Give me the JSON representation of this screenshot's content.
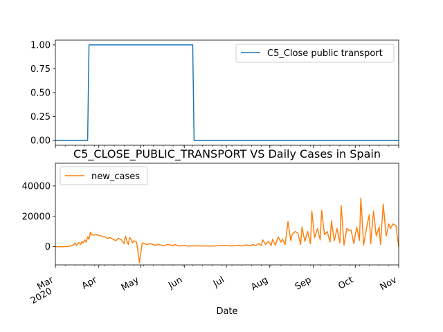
{
  "chart_data": [
    {
      "type": "line",
      "title": "",
      "xlabel": "",
      "ylabel": "",
      "ylim": [
        -0.05,
        1.05
      ],
      "y_ticks": [
        "0.00",
        "0.25",
        "0.50",
        "0.75",
        "1.00"
      ],
      "y_tick_values": [
        0,
        0.25,
        0.5,
        0.75,
        1.0
      ],
      "legend_position": "top-right",
      "series": [
        {
          "name": "C5_Close public transport",
          "color": "#1f77b4",
          "x": [
            "2020-03-01",
            "2020-03-24",
            "2020-03-25",
            "2020-06-07",
            "2020-06-08",
            "2020-11-01"
          ],
          "values": [
            0,
            0,
            1,
            1,
            0,
            0
          ]
        }
      ]
    },
    {
      "type": "line",
      "title": "C5_CLOSE_PUBLIC_TRANSPORT VS Daily Cases in Spain",
      "xlabel": "Date",
      "ylabel": "",
      "ylim": [
        -12000,
        55000
      ],
      "y_ticks": [
        "0",
        "20000",
        "40000"
      ],
      "y_tick_values": [
        0,
        20000,
        40000
      ],
      "legend_position": "top-left",
      "x_ticks": [
        {
          "label": "Mar",
          "sub": "2020",
          "date": "2020-03-01"
        },
        {
          "label": "Apr",
          "sub": "",
          "date": "2020-04-01"
        },
        {
          "label": "May",
          "sub": "",
          "date": "2020-05-01"
        },
        {
          "label": "Jun",
          "sub": "",
          "date": "2020-06-01"
        },
        {
          "label": "Jul",
          "sub": "",
          "date": "2020-07-01"
        },
        {
          "label": "Aug",
          "sub": "",
          "date": "2020-08-01"
        },
        {
          "label": "Sep",
          "sub": "",
          "date": "2020-09-01"
        },
        {
          "label": "Oct",
          "sub": "",
          "date": "2020-10-01"
        },
        {
          "label": "Nov",
          "sub": "",
          "date": "2020-11-01"
        }
      ],
      "x_range": [
        "2020-03-01",
        "2020-11-01"
      ],
      "series": [
        {
          "name": "new_cases",
          "color": "#ff7f0e",
          "x": [
            "2020-03-01",
            "2020-03-05",
            "2020-03-10",
            "2020-03-12",
            "2020-03-14",
            "2020-03-15",
            "2020-03-16",
            "2020-03-17",
            "2020-03-18",
            "2020-03-19",
            "2020-03-20",
            "2020-03-21",
            "2020-03-22",
            "2020-03-23",
            "2020-03-24",
            "2020-03-25",
            "2020-03-26",
            "2020-03-27",
            "2020-03-28",
            "2020-03-30",
            "2020-04-01",
            "2020-04-03",
            "2020-04-05",
            "2020-04-07",
            "2020-04-09",
            "2020-04-11",
            "2020-04-13",
            "2020-04-15",
            "2020-04-17",
            "2020-04-19",
            "2020-04-20",
            "2020-04-21",
            "2020-04-22",
            "2020-04-23",
            "2020-04-24",
            "2020-04-25",
            "2020-04-26",
            "2020-04-28",
            "2020-04-30",
            "2020-05-02",
            "2020-05-05",
            "2020-05-08",
            "2020-05-11",
            "2020-05-14",
            "2020-05-17",
            "2020-05-20",
            "2020-05-23",
            "2020-05-24",
            "2020-05-25",
            "2020-05-28",
            "2020-06-01",
            "2020-06-03",
            "2020-06-06",
            "2020-06-10",
            "2020-06-15",
            "2020-06-20",
            "2020-06-25",
            "2020-06-30",
            "2020-07-05",
            "2020-07-10",
            "2020-07-12",
            "2020-07-15",
            "2020-07-18",
            "2020-07-20",
            "2020-07-22",
            "2020-07-24",
            "2020-07-26",
            "2020-07-27",
            "2020-07-29",
            "2020-07-31",
            "2020-08-02",
            "2020-08-03",
            "2020-08-05",
            "2020-08-07",
            "2020-08-09",
            "2020-08-10",
            "2020-08-12",
            "2020-08-14",
            "2020-08-16",
            "2020-08-17",
            "2020-08-19",
            "2020-08-21",
            "2020-08-23",
            "2020-08-24",
            "2020-08-26",
            "2020-08-28",
            "2020-08-30",
            "2020-08-31",
            "2020-09-02",
            "2020-09-04",
            "2020-09-06",
            "2020-09-07",
            "2020-09-09",
            "2020-09-11",
            "2020-09-13",
            "2020-09-14",
            "2020-09-16",
            "2020-09-18",
            "2020-09-20",
            "2020-09-21",
            "2020-09-23",
            "2020-09-25",
            "2020-09-27",
            "2020-09-28",
            "2020-09-30",
            "2020-10-02",
            "2020-10-04",
            "2020-10-05",
            "2020-10-07",
            "2020-10-09",
            "2020-10-11",
            "2020-10-12",
            "2020-10-14",
            "2020-10-16",
            "2020-10-18",
            "2020-10-19",
            "2020-10-21",
            "2020-10-23",
            "2020-10-25",
            "2020-10-26",
            "2020-10-28",
            "2020-10-30",
            "2020-11-01"
          ],
          "values": [
            0,
            0,
            200,
            500,
            1200,
            2500,
            800,
            2000,
            2800,
            1500,
            3500,
            2500,
            4500,
            3000,
            6500,
            5000,
            9500,
            8000,
            7500,
            8000,
            7500,
            7000,
            6500,
            5500,
            6000,
            5000,
            4000,
            5500,
            4500,
            2000,
            7000,
            4000,
            1500,
            6000,
            5000,
            2500,
            4000,
            3000,
            -10500,
            2500,
            1500,
            2000,
            1000,
            1500,
            500,
            1500,
            1000,
            500,
            1500,
            500,
            800,
            400,
            500,
            600,
            500,
            400,
            600,
            800,
            500,
            1000,
            400,
            1200,
            600,
            1500,
            800,
            2000,
            900,
            4500,
            1500,
            3500,
            800,
            5000,
            1000,
            6500,
            3000,
            5000,
            1500,
            16500,
            4000,
            8000,
            10000,
            9000,
            1500,
            13000,
            3500,
            10000,
            2000,
            23500,
            6000,
            12000,
            4500,
            24000,
            8000,
            10000,
            3000,
            17000,
            4000,
            12000,
            2500,
            27000,
            1000,
            12000,
            10500,
            11000,
            2000,
            13000,
            4000,
            32000,
            1000,
            12000,
            21000,
            2000,
            23500,
            7000,
            13000,
            1500,
            28000,
            7000,
            15000,
            12000,
            15000,
            14000,
            0
          ]
        }
      ]
    }
  ]
}
